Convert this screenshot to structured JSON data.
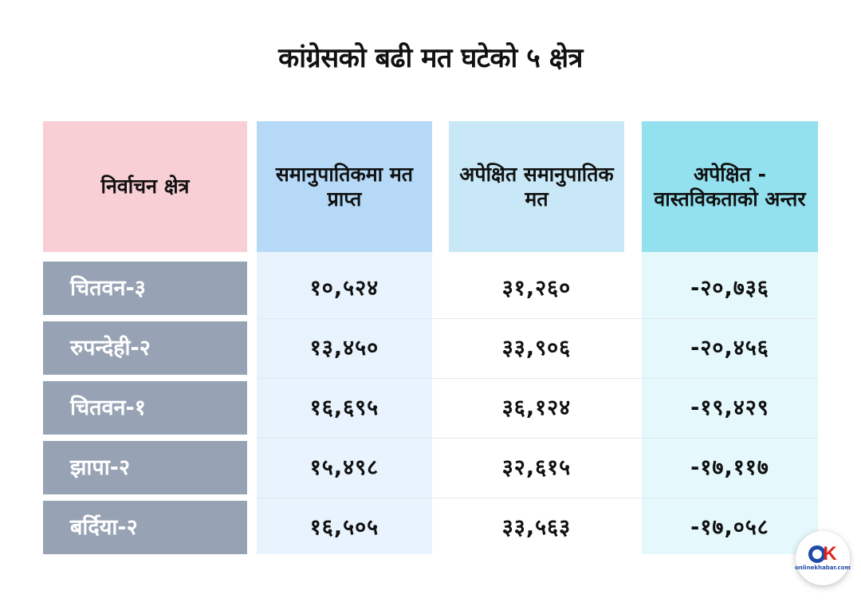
{
  "chart_data": {
    "type": "table",
    "title": "कांग्रेसको बढी मत घटेको ५ क्षेत्र",
    "columns": [
      "निर्वाचन क्षेत्र",
      "समानुपातिकमा मत प्राप्त",
      "अपेक्षित समानुपातिक मत",
      "अपेक्षित - वास्तविकताको अन्तर"
    ],
    "rows": [
      [
        "चितवन-३",
        "१०,५२४",
        "३१,२६०",
        "-२०,७३६"
      ],
      [
        "रुपन्देही-२",
        "१३,४५०",
        "३३,९०६",
        "-२०,४५६"
      ],
      [
        "चितवन-१",
        "१६,६९५",
        "३६,१२४",
        "-१९,४२९"
      ],
      [
        "झापा-२",
        "१५,४९८",
        "३२,६१५",
        "-१७,११७"
      ],
      [
        "बर्दिया-२",
        "१६,५०५",
        "३३,५६३",
        "-१७,०५८"
      ]
    ],
    "values": [
      [
        10524,
        31260,
        -20736
      ],
      [
        13450,
        33906,
        -20456
      ],
      [
        16695,
        36124,
        -19429
      ],
      [
        15498,
        32615,
        -17117
      ],
      [
        16505,
        33563,
        -17058
      ]
    ]
  },
  "colors": {
    "header_name": "#f8cfd4",
    "header_col1": "#b5d9f6",
    "header_col2": "#c9e8f7",
    "header_col3": "#93e0ee",
    "name_cell": "#97a3b4"
  },
  "logo": {
    "text": "onlinekhabar.com",
    "icon": "onlinekhabar-logo"
  }
}
